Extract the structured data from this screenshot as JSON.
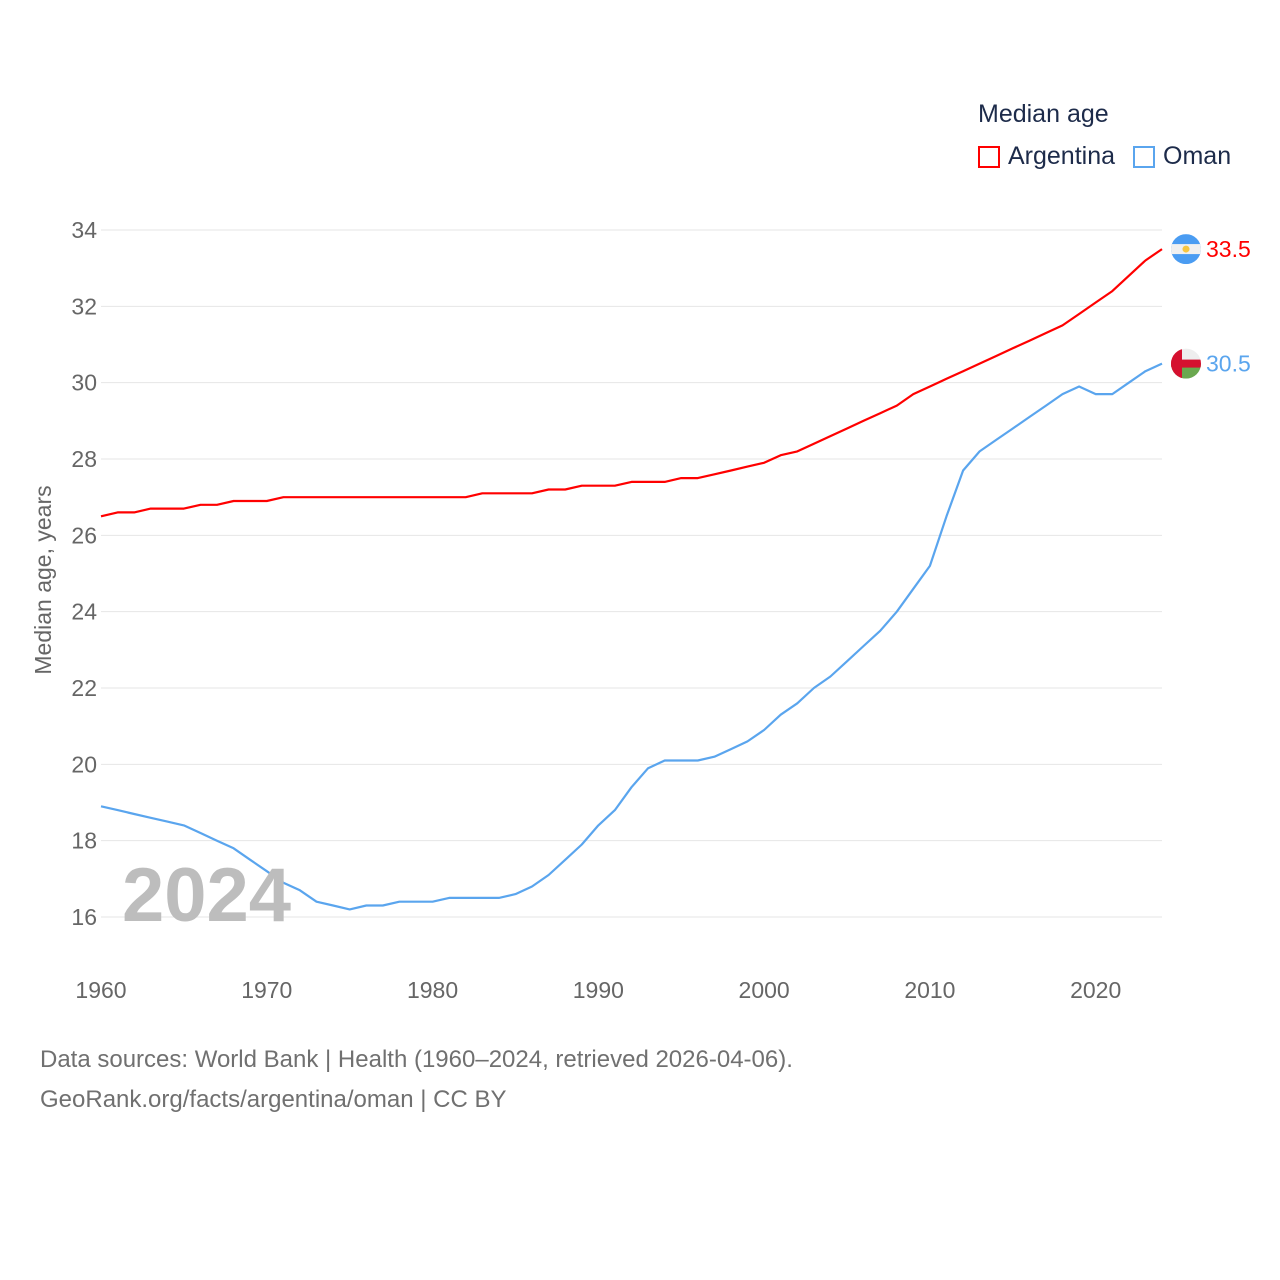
{
  "chart_data": {
    "type": "line",
    "title": "Median age",
    "ylabel": "Median age, years",
    "xlabel": "",
    "ylim": [
      16,
      34
    ],
    "xlim": [
      1960,
      2024
    ],
    "yticks": [
      "16",
      "18",
      "20",
      "22",
      "24",
      "26",
      "28",
      "30",
      "32",
      "34"
    ],
    "xticks": [
      "1960",
      "1970",
      "1980",
      "1990",
      "2000",
      "2010",
      "2020"
    ],
    "grid": true,
    "legend_placement": "top-right",
    "current_year_label": "2024",
    "x_start": 1960,
    "series": [
      {
        "name": "Argentina",
        "color": "#ff0000",
        "end_label": "33.5",
        "values": [
          26.5,
          26.6,
          26.6,
          26.7,
          26.7,
          26.7,
          26.8,
          26.8,
          26.9,
          26.9,
          26.9,
          27.0,
          27.0,
          27.0,
          27.0,
          27.0,
          27.0,
          27.0,
          27.0,
          27.0,
          27.0,
          27.0,
          27.0,
          27.1,
          27.1,
          27.1,
          27.1,
          27.2,
          27.2,
          27.3,
          27.3,
          27.3,
          27.4,
          27.4,
          27.4,
          27.5,
          27.5,
          27.6,
          27.7,
          27.8,
          27.9,
          28.1,
          28.2,
          28.4,
          28.6,
          28.8,
          29.0,
          29.2,
          29.4,
          29.7,
          29.9,
          30.1,
          30.3,
          30.5,
          30.7,
          30.9,
          31.1,
          31.3,
          31.5,
          31.8,
          32.1,
          32.4,
          32.8,
          33.2,
          33.5
        ]
      },
      {
        "name": "Oman",
        "color": "#5aa5ee",
        "end_label": "30.5",
        "values": [
          18.9,
          18.8,
          18.7,
          18.6,
          18.5,
          18.4,
          18.2,
          18.0,
          17.8,
          17.5,
          17.2,
          16.9,
          16.7,
          16.4,
          16.3,
          16.2,
          16.3,
          16.3,
          16.4,
          16.4,
          16.4,
          16.5,
          16.5,
          16.5,
          16.5,
          16.6,
          16.8,
          17.1,
          17.5,
          17.9,
          18.4,
          18.8,
          19.4,
          19.9,
          20.1,
          20.1,
          20.1,
          20.2,
          20.4,
          20.6,
          20.9,
          21.3,
          21.6,
          22.0,
          22.3,
          22.7,
          23.1,
          23.5,
          24.0,
          24.6,
          25.2,
          26.5,
          27.7,
          28.2,
          28.5,
          28.8,
          29.1,
          29.4,
          29.7,
          29.9,
          29.7,
          29.7,
          30.0,
          30.3,
          30.5
        ]
      }
    ]
  },
  "footer": {
    "line1": "Data sources: World Bank | Health (1960–2024, retrieved 2026-04-06).",
    "line2": "GeoRank.org/facts/argentina/oman | CC BY"
  }
}
